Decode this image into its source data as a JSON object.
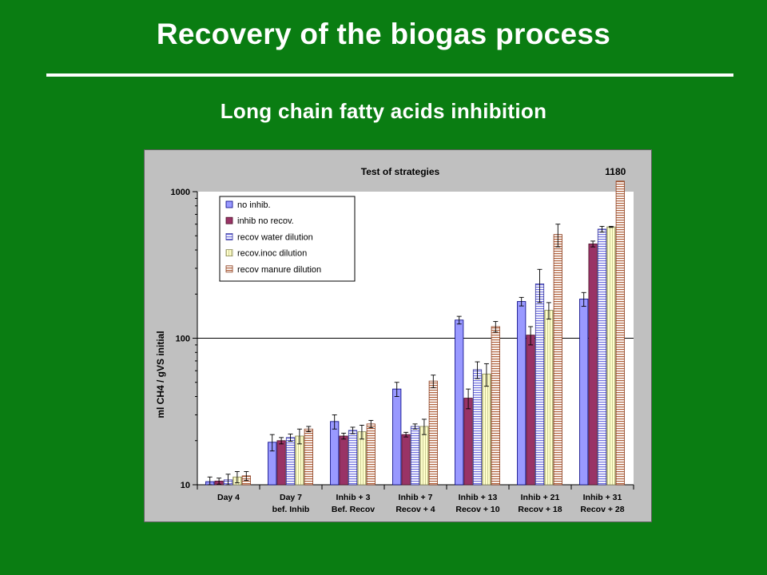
{
  "slide": {
    "title": "Recovery of the biogas process",
    "subtitle": "Long chain fatty acids inhibition"
  },
  "colors": {
    "background": "#0a7d12",
    "plot_area": "#c0c0c0",
    "series": [
      "#9999ff",
      "#993366",
      "#9999ff",
      "#ffffcc",
      "#cc6633"
    ]
  },
  "chart_data": {
    "type": "bar",
    "title": "Test of strategies",
    "ylabel": "ml CH4 / gVS initial",
    "xlabel": "",
    "y_scale": "log",
    "ylim": [
      10,
      1000
    ],
    "y_ticks": [
      10,
      100,
      1000
    ],
    "y_tick_labels": [
      "10",
      "100",
      "1000"
    ],
    "gridlines": [
      100
    ],
    "legend_position": "top-left",
    "categories": [
      [
        "Day 4",
        ""
      ],
      [
        "Day 7",
        "bef. Inhib"
      ],
      [
        "Inhib + 3",
        "Bef. Recov"
      ],
      [
        "Inhib + 7",
        "Recov + 4"
      ],
      [
        "Inhib + 13",
        "Recov + 10"
      ],
      [
        "Inhib + 21",
        "Recov + 18"
      ],
      [
        "Inhib + 31",
        "Recov + 28"
      ]
    ],
    "series": [
      {
        "name": "no inhib.",
        "fill": "solid",
        "values": [
          10.5,
          19.5,
          27,
          45,
          133,
          178,
          185
        ],
        "errors": [
          0.8,
          2.5,
          3,
          5,
          8,
          12,
          20
        ]
      },
      {
        "name": "inhib no recov.",
        "fill": "solid",
        "values": [
          10.6,
          20,
          21.5,
          22,
          39,
          105,
          440
        ],
        "errors": [
          0.5,
          1,
          1,
          0.8,
          6,
          15,
          20
        ]
      },
      {
        "name": "recov water dilution",
        "fill": "hstripes",
        "values": [
          10.8,
          21,
          23.5,
          25,
          61,
          235,
          555
        ],
        "errors": [
          1,
          1.2,
          1.2,
          1,
          8,
          60,
          25
        ]
      },
      {
        "name": "recov.inoc dilution",
        "fill": "vstripes",
        "values": [
          11.3,
          21.5,
          23,
          25,
          57,
          155,
          575
        ],
        "errors": [
          1,
          2.5,
          2.5,
          3,
          10,
          20,
          5
        ]
      },
      {
        "name": "recov manure dilution",
        "fill": "hstripes",
        "values": [
          11.5,
          24,
          26,
          51,
          120,
          510,
          1180
        ],
        "errors": [
          0.8,
          1,
          1.5,
          5,
          10,
          90,
          0
        ]
      }
    ],
    "annotations": [
      {
        "text": "1180",
        "category_index": 6,
        "series_index": 4
      }
    ]
  }
}
